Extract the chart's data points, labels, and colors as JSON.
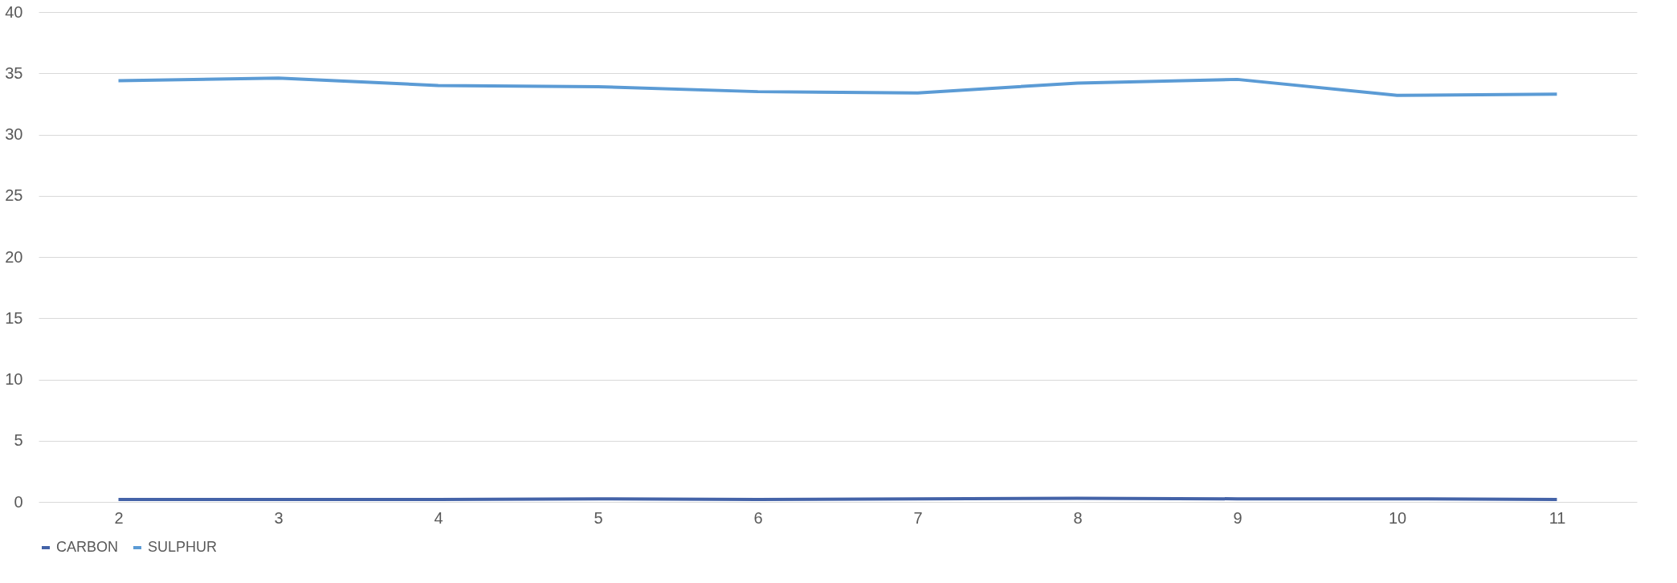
{
  "chart_data": {
    "type": "line",
    "categories": [
      "2",
      "3",
      "4",
      "5",
      "6",
      "7",
      "8",
      "9",
      "10",
      "11"
    ],
    "series": [
      {
        "name": "CARBON",
        "color": "#4463a8",
        "values": [
          0.2,
          0.2,
          0.2,
          0.25,
          0.2,
          0.25,
          0.3,
          0.25,
          0.25,
          0.2
        ]
      },
      {
        "name": "SULPHUR",
        "color": "#5b9bd5",
        "values": [
          34.4,
          34.6,
          34.0,
          33.9,
          33.5,
          33.4,
          34.2,
          34.5,
          33.2,
          33.3
        ]
      }
    ],
    "ylim": [
      0,
      40
    ],
    "yticks": [
      0,
      5,
      10,
      15,
      20,
      25,
      30,
      35,
      40
    ],
    "grid": "y",
    "legend": "bottom",
    "marker": "none",
    "line_style": "solid"
  }
}
